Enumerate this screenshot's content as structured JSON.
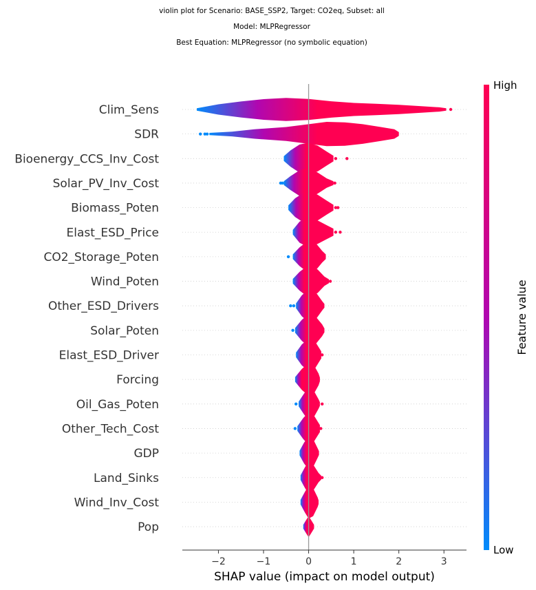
{
  "chart_data": {
    "type": "violin",
    "title_lines": [
      "violin plot for Scenario: BASE_SSP2, Target: CO2eq, Subset: all",
      "Model: MLPRegressor",
      "Best Equation: MLPRegressor (no symbolic equation)"
    ],
    "xlabel": "SHAP value (impact on model output)",
    "xlim": [
      -2.8,
      3.5
    ],
    "xticks": [
      -2,
      -1,
      0,
      1,
      2,
      3
    ],
    "xtick_labels": [
      "−2",
      "−1",
      "0",
      "1",
      "2",
      "3"
    ],
    "colorbar": {
      "title": "Feature value",
      "high_label": "High",
      "low_label": "Low",
      "low_color": "#008bfb",
      "high_color": "#ff0052"
    },
    "features": [
      {
        "name": "Clim_Sens",
        "min": -2.48,
        "max": 3.15,
        "profile": [
          [
            -2.48,
            0.05
          ],
          [
            -2.0,
            0.22
          ],
          [
            -1.5,
            0.34
          ],
          [
            -1.0,
            0.44
          ],
          [
            -0.5,
            0.49
          ],
          [
            0.0,
            0.45
          ],
          [
            0.5,
            0.35
          ],
          [
            1.0,
            0.28
          ],
          [
            1.5,
            0.24
          ],
          [
            2.0,
            0.2
          ],
          [
            2.5,
            0.14
          ],
          [
            2.9,
            0.09
          ],
          [
            3.05,
            0.05
          ]
        ],
        "low_end": -2.48,
        "high_start": 0.2,
        "outliers_left": [],
        "outliers_right": [
          3.15
        ]
      },
      {
        "name": "SDR",
        "min": -2.4,
        "max": 2.0,
        "profile": [
          [
            -2.2,
            0.05
          ],
          [
            -1.7,
            0.1
          ],
          [
            -1.2,
            0.2
          ],
          [
            -0.5,
            0.3
          ],
          [
            0.0,
            0.42
          ],
          [
            0.4,
            0.52
          ],
          [
            0.8,
            0.5
          ],
          [
            1.2,
            0.42
          ],
          [
            1.6,
            0.3
          ],
          [
            1.9,
            0.2
          ],
          [
            2.0,
            0.08
          ]
        ],
        "low_end": -2.2,
        "high_start": 0.2,
        "outliers_left": [
          -2.4,
          -2.3,
          -2.25
        ],
        "outliers_right": []
      },
      {
        "name": "Bioenergy_CCS_Inv_Cost",
        "min": -0.55,
        "max": 0.85,
        "profile": [
          [
            -0.55,
            0.1
          ],
          [
            -0.4,
            0.35
          ],
          [
            -0.2,
            0.6
          ],
          [
            0.0,
            0.68
          ],
          [
            0.2,
            0.55
          ],
          [
            0.4,
            0.3
          ],
          [
            0.55,
            0.12
          ]
        ],
        "low_end": -0.55,
        "high_start": -0.05,
        "outliers_left": [],
        "outliers_right": [
          0.6,
          0.85
        ]
      },
      {
        "name": "Solar_PV_Inv_Cost",
        "min": -0.62,
        "max": 0.58,
        "profile": [
          [
            -0.55,
            0.08
          ],
          [
            -0.4,
            0.3
          ],
          [
            -0.2,
            0.55
          ],
          [
            0.0,
            0.65
          ],
          [
            0.2,
            0.45
          ],
          [
            0.4,
            0.2
          ],
          [
            0.55,
            0.08
          ]
        ],
        "low_end": -0.55,
        "high_start": -0.1,
        "outliers_left": [
          -0.62,
          -0.58
        ],
        "outliers_right": [
          0.58
        ]
      },
      {
        "name": "Biomass_Poten",
        "min": -0.45,
        "max": 0.65,
        "profile": [
          [
            -0.45,
            0.1
          ],
          [
            -0.3,
            0.4
          ],
          [
            -0.1,
            0.65
          ],
          [
            0.05,
            0.7
          ],
          [
            0.2,
            0.55
          ],
          [
            0.4,
            0.3
          ],
          [
            0.55,
            0.12
          ]
        ],
        "low_end": -0.45,
        "high_start": -0.1,
        "outliers_left": [],
        "outliers_right": [
          0.6,
          0.65
        ]
      },
      {
        "name": "Elast_ESD_Price",
        "min": -0.35,
        "max": 0.7,
        "profile": [
          [
            -0.35,
            0.1
          ],
          [
            -0.2,
            0.45
          ],
          [
            0.0,
            0.65
          ],
          [
            0.2,
            0.5
          ],
          [
            0.4,
            0.3
          ],
          [
            0.55,
            0.15
          ]
        ],
        "low_end": -0.35,
        "high_start": -0.1,
        "outliers_left": [],
        "outliers_right": [
          0.6,
          0.7
        ]
      },
      {
        "name": "CO2_Storage_Poten",
        "min": -0.45,
        "max": 0.4,
        "profile": [
          [
            -0.35,
            0.1
          ],
          [
            -0.2,
            0.4
          ],
          [
            0.0,
            0.7
          ],
          [
            0.15,
            0.6
          ],
          [
            0.3,
            0.25
          ],
          [
            0.38,
            0.1
          ]
        ],
        "low_end": -0.35,
        "high_start": -0.1,
        "outliers_left": [
          -0.45
        ],
        "outliers_right": []
      },
      {
        "name": "Wind_Poten",
        "min": -0.35,
        "max": 0.48,
        "profile": [
          [
            -0.35,
            0.1
          ],
          [
            -0.2,
            0.4
          ],
          [
            0.0,
            0.7
          ],
          [
            0.2,
            0.5
          ],
          [
            0.35,
            0.2
          ],
          [
            0.45,
            0.08
          ]
        ],
        "low_end": -0.35,
        "high_start": -0.1,
        "outliers_left": [],
        "outliers_right": [
          0.48
        ]
      },
      {
        "name": "Other_ESD_Drivers",
        "min": -0.4,
        "max": 0.35,
        "profile": [
          [
            -0.28,
            0.1
          ],
          [
            -0.15,
            0.45
          ],
          [
            0.0,
            0.7
          ],
          [
            0.15,
            0.6
          ],
          [
            0.3,
            0.2
          ],
          [
            0.35,
            0.08
          ]
        ],
        "low_end": -0.28,
        "high_start": -0.05,
        "outliers_left": [
          -0.4,
          -0.33
        ],
        "outliers_right": []
      },
      {
        "name": "Solar_Poten",
        "min": -0.35,
        "max": 0.35,
        "profile": [
          [
            -0.3,
            0.1
          ],
          [
            -0.15,
            0.45
          ],
          [
            0.0,
            0.7
          ],
          [
            0.15,
            0.6
          ],
          [
            0.3,
            0.25
          ],
          [
            0.35,
            0.08
          ]
        ],
        "low_end": -0.3,
        "high_start": -0.05,
        "outliers_left": [
          -0.35
        ],
        "outliers_right": []
      },
      {
        "name": "Elast_ESD_Driver",
        "min": -0.28,
        "max": 0.3,
        "profile": [
          [
            -0.28,
            0.1
          ],
          [
            -0.15,
            0.45
          ],
          [
            0.0,
            0.7
          ],
          [
            0.15,
            0.55
          ],
          [
            0.28,
            0.15
          ]
        ],
        "low_end": -0.28,
        "high_start": -0.05,
        "outliers_left": [],
        "outliers_right": [
          0.3
        ]
      },
      {
        "name": "Forcing",
        "min": -0.3,
        "max": 0.25,
        "profile": [
          [
            -0.3,
            0.1
          ],
          [
            -0.15,
            0.45
          ],
          [
            0.0,
            0.7
          ],
          [
            0.12,
            0.6
          ],
          [
            0.22,
            0.25
          ],
          [
            0.25,
            0.08
          ]
        ],
        "low_end": -0.3,
        "high_start": -0.15,
        "outliers_left": [],
        "outliers_right": []
      },
      {
        "name": "Oil_Gas_Poten",
        "min": -0.28,
        "max": 0.3,
        "profile": [
          [
            -0.22,
            0.1
          ],
          [
            -0.1,
            0.45
          ],
          [
            0.0,
            0.7
          ],
          [
            0.12,
            0.55
          ],
          [
            0.22,
            0.2
          ],
          [
            0.25,
            0.08
          ]
        ],
        "low_end": -0.22,
        "high_start": -0.05,
        "outliers_left": [
          -0.28
        ],
        "outliers_right": [
          0.3
        ]
      },
      {
        "name": "Other_Tech_Cost",
        "min": -0.3,
        "max": 0.27,
        "profile": [
          [
            -0.25,
            0.1
          ],
          [
            -0.12,
            0.45
          ],
          [
            0.0,
            0.7
          ],
          [
            0.12,
            0.55
          ],
          [
            0.25,
            0.15
          ]
        ],
        "low_end": -0.25,
        "high_start": -0.05,
        "outliers_left": [
          -0.3
        ],
        "outliers_right": [
          0.27
        ]
      },
      {
        "name": "GDP",
        "min": -0.22,
        "max": 0.23,
        "profile": [
          [
            -0.2,
            0.1
          ],
          [
            -0.1,
            0.45
          ],
          [
            0.0,
            0.7
          ],
          [
            0.1,
            0.6
          ],
          [
            0.2,
            0.2
          ],
          [
            0.23,
            0.08
          ]
        ],
        "low_end": -0.2,
        "high_start": -0.05,
        "outliers_left": [],
        "outliers_right": []
      },
      {
        "name": "Land_Sinks",
        "min": -0.2,
        "max": 0.3,
        "profile": [
          [
            -0.18,
            0.1
          ],
          [
            -0.08,
            0.45
          ],
          [
            0.0,
            0.7
          ],
          [
            0.12,
            0.5
          ],
          [
            0.22,
            0.2
          ],
          [
            0.28,
            0.08
          ]
        ],
        "low_end": -0.18,
        "high_start": -0.05,
        "outliers_left": [],
        "outliers_right": [
          0.3
        ]
      },
      {
        "name": "Wind_Inv_Cost",
        "min": -0.2,
        "max": 0.22,
        "profile": [
          [
            -0.18,
            0.1
          ],
          [
            -0.08,
            0.45
          ],
          [
            0.0,
            0.7
          ],
          [
            0.1,
            0.6
          ],
          [
            0.2,
            0.2
          ],
          [
            0.22,
            0.08
          ]
        ],
        "low_end": -0.18,
        "high_start": -0.05,
        "outliers_left": [],
        "outliers_right": []
      },
      {
        "name": "Pop",
        "min": -0.12,
        "max": 0.12,
        "profile": [
          [
            -0.12,
            0.08
          ],
          [
            -0.05,
            0.3
          ],
          [
            0.0,
            0.45
          ],
          [
            0.05,
            0.3
          ],
          [
            0.12,
            0.08
          ]
        ],
        "low_end": -0.12,
        "high_start": -0.04,
        "outliers_left": [],
        "outliers_right": []
      }
    ]
  }
}
